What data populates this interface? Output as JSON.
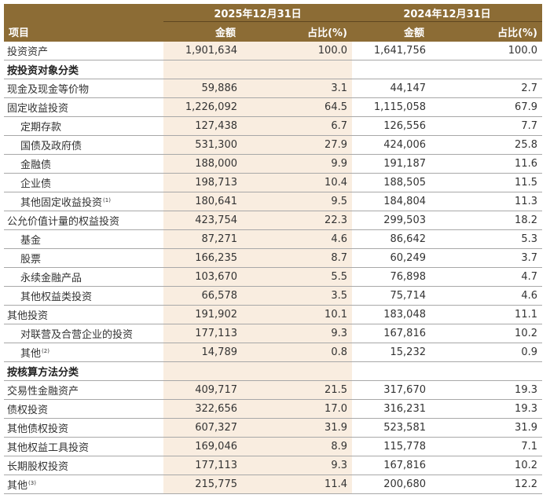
{
  "table": {
    "header": {
      "periods": [
        "2025年12月31日",
        "2024年12月31日"
      ],
      "item_label": "项目",
      "amount_label": "金额",
      "pct_label": "占比(%)"
    },
    "rows": [
      {
        "label": "投资资产",
        "style": "top",
        "a25": "1,901,634",
        "p25": "100.0",
        "a24": "1,641,756",
        "p24": "100.0"
      },
      {
        "label": "按投资对象分类",
        "style": "section",
        "a25": "",
        "p25": "",
        "a24": "",
        "p24": ""
      },
      {
        "label": "现金及现金等价物",
        "style": "top",
        "a25": "59,886",
        "p25": "3.1",
        "a24": "44,147",
        "p24": "2.7"
      },
      {
        "label": "固定收益投资",
        "style": "top",
        "a25": "1,226,092",
        "p25": "64.5",
        "a24": "1,115,058",
        "p24": "67.9"
      },
      {
        "label": "定期存款",
        "style": "indent",
        "a25": "127,438",
        "p25": "6.7",
        "a24": "126,556",
        "p24": "7.7"
      },
      {
        "label": "国债及政府债",
        "style": "indent",
        "a25": "531,300",
        "p25": "27.9",
        "a24": "424,006",
        "p24": "25.8"
      },
      {
        "label": "金融债",
        "style": "indent",
        "a25": "188,000",
        "p25": "9.9",
        "a24": "191,187",
        "p24": "11.6"
      },
      {
        "label": "企业债",
        "style": "indent",
        "a25": "198,713",
        "p25": "10.4",
        "a24": "188,505",
        "p24": "11.5"
      },
      {
        "label": "其他固定收益投资",
        "note": "(1)",
        "style": "indent",
        "a25": "180,641",
        "p25": "9.5",
        "a24": "184,804",
        "p24": "11.3"
      },
      {
        "label": "公允价值计量的权益投资",
        "style": "top",
        "a25": "423,754",
        "p25": "22.3",
        "a24": "299,503",
        "p24": "18.2"
      },
      {
        "label": "基金",
        "style": "indent",
        "a25": "87,271",
        "p25": "4.6",
        "a24": "86,642",
        "p24": "5.3"
      },
      {
        "label": "股票",
        "style": "indent",
        "a25": "166,235",
        "p25": "8.7",
        "a24": "60,249",
        "p24": "3.7"
      },
      {
        "label": "永续金融产品",
        "style": "indent",
        "a25": "103,670",
        "p25": "5.5",
        "a24": "76,898",
        "p24": "4.7"
      },
      {
        "label": "其他权益类投资",
        "style": "indent",
        "a25": "66,578",
        "p25": "3.5",
        "a24": "75,714",
        "p24": "4.6"
      },
      {
        "label": "其他投资",
        "style": "top",
        "a25": "191,902",
        "p25": "10.1",
        "a24": "183,048",
        "p24": "11.1"
      },
      {
        "label": "对联营及合营企业的投资",
        "style": "indent",
        "a25": "177,113",
        "p25": "9.3",
        "a24": "167,816",
        "p24": "10.2"
      },
      {
        "label": "其他",
        "note": "(2)",
        "style": "indent",
        "a25": "14,789",
        "p25": "0.8",
        "a24": "15,232",
        "p24": "0.9"
      },
      {
        "label": "按核算方法分类",
        "style": "section",
        "a25": "",
        "p25": "",
        "a24": "",
        "p24": ""
      },
      {
        "label": "交易性金融资产",
        "style": "top",
        "a25": "409,717",
        "p25": "21.5",
        "a24": "317,670",
        "p24": "19.3"
      },
      {
        "label": "债权投资",
        "style": "top",
        "a25": "322,656",
        "p25": "17.0",
        "a24": "316,231",
        "p24": "19.3"
      },
      {
        "label": "其他债权投资",
        "style": "top",
        "a25": "607,327",
        "p25": "31.9",
        "a24": "523,581",
        "p24": "31.9"
      },
      {
        "label": "其他权益工具投资",
        "style": "top",
        "a25": "169,046",
        "p25": "8.9",
        "a24": "115,778",
        "p24": "7.1"
      },
      {
        "label": "长期股权投资",
        "style": "top",
        "a25": "177,113",
        "p25": "9.3",
        "a24": "167,816",
        "p24": "10.2"
      },
      {
        "label": "其他",
        "note": "(3)",
        "style": "top",
        "a25": "215,775",
        "p25": "11.4",
        "a24": "200,680",
        "p24": "12.2"
      }
    ]
  },
  "colors": {
    "header_bg": "#8c6c35",
    "header_text": "#ffffff",
    "current_period_bg": "#f9ede0",
    "row_divider": "#a8a8a8"
  }
}
